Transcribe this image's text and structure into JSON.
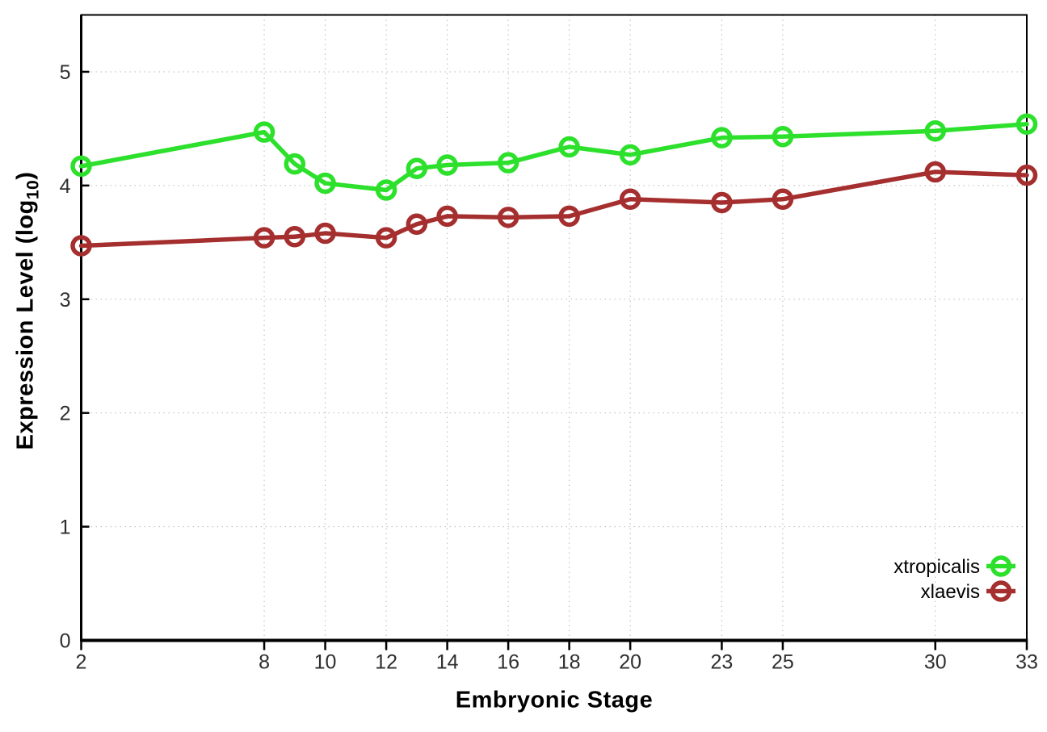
{
  "figure": {
    "background": "#ffffff"
  },
  "chart_data": {
    "type": "line",
    "title": "",
    "xlabel": "Embryonic Stage",
    "ylabel": "Expression Level (log10)",
    "ylabel_parts": {
      "prefix": "Expression Level (log",
      "sub": "10",
      "suffix": ")"
    },
    "x": [
      2,
      8,
      9,
      10,
      12,
      13,
      14,
      16,
      18,
      20,
      23,
      25,
      30,
      33
    ],
    "series": [
      {
        "name": "xtropicalis",
        "color": "#2ce02c",
        "values": [
          4.17,
          4.47,
          4.19,
          4.02,
          3.96,
          4.15,
          4.18,
          4.2,
          4.34,
          4.27,
          4.42,
          4.43,
          4.48,
          4.54
        ]
      },
      {
        "name": "xlaevis",
        "color": "#a52f2f",
        "values": [
          3.47,
          3.54,
          3.55,
          3.58,
          3.54,
          3.66,
          3.73,
          3.72,
          3.73,
          3.88,
          3.85,
          3.88,
          4.12,
          4.09
        ]
      }
    ],
    "x_ticks": [
      2,
      8,
      10,
      12,
      14,
      16,
      18,
      20,
      23,
      25,
      30,
      33
    ],
    "y_ticks": [
      0,
      1,
      2,
      3,
      4,
      5
    ],
    "xlim": [
      2,
      33
    ],
    "ylim": [
      0,
      5.5
    ],
    "grid": true,
    "legend_position": "inside bottom-right",
    "colors": {
      "axis": "#000000",
      "grid": "#b8b8b8",
      "tick_text": "#2e2e2e",
      "legend_text": "#000000"
    }
  }
}
